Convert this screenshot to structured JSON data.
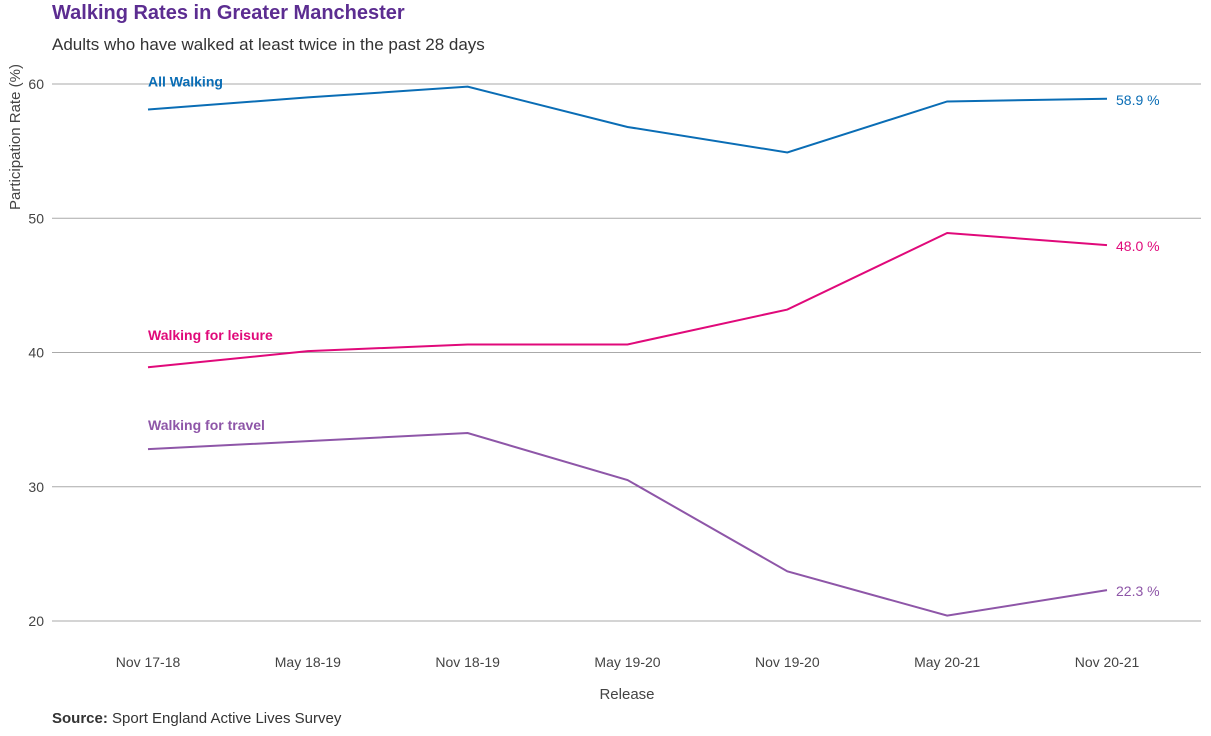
{
  "chart_data": {
    "type": "line",
    "title": "Walking Rates in Greater Manchester",
    "subtitle": "Adults who have walked at least twice in the past 28 days",
    "xlabel": "Release",
    "ylabel": "Participation Rate (%)",
    "categories": [
      "Nov 17-18",
      "May 18-19",
      "Nov 18-19",
      "May 19-20",
      "Nov 19-20",
      "May 20-21",
      "Nov 20-21"
    ],
    "ylim": [
      20,
      60
    ],
    "yticks": [
      20,
      30,
      40,
      50,
      60
    ],
    "grid": true,
    "legend": "none",
    "series": [
      {
        "name": "All Walking",
        "color": "#0a6db5",
        "values": [
          58.1,
          59.0,
          59.8,
          56.8,
          54.9,
          58.7,
          58.9
        ],
        "end_label": "58.9 %"
      },
      {
        "name": "Walking for leisure",
        "color": "#e0097a",
        "values": [
          38.9,
          40.1,
          40.6,
          40.6,
          43.2,
          48.9,
          48.0
        ],
        "end_label": "48.0 %"
      },
      {
        "name": "Walking for travel",
        "color": "#8e56a8",
        "values": [
          32.8,
          33.4,
          34.0,
          30.5,
          23.7,
          20.4,
          22.3
        ],
        "end_label": "22.3 %"
      }
    ]
  },
  "source": {
    "label": "Source:",
    "text": "Sport England Active Lives Survey"
  }
}
